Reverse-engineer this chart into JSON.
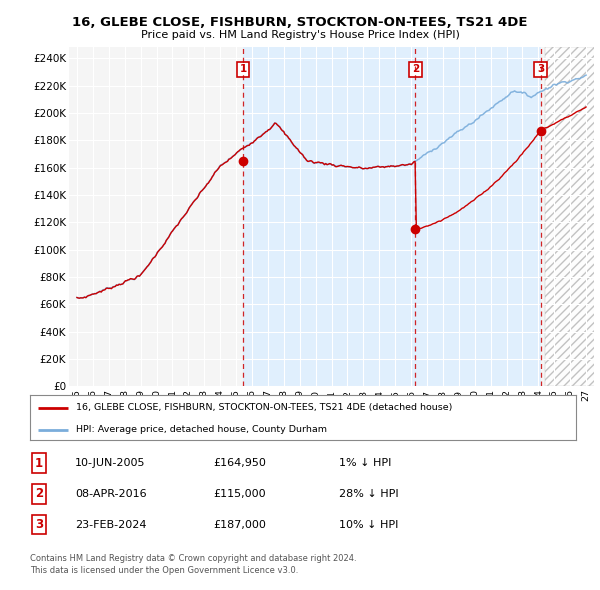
{
  "title": "16, GLEBE CLOSE, FISHBURN, STOCKTON-ON-TEES, TS21 4DE",
  "subtitle": "Price paid vs. HM Land Registry's House Price Index (HPI)",
  "ylabel_ticks": [
    "£0",
    "£20K",
    "£40K",
    "£60K",
    "£80K",
    "£100K",
    "£120K",
    "£140K",
    "£160K",
    "£180K",
    "£200K",
    "£220K",
    "£240K"
  ],
  "ytick_values": [
    0,
    20000,
    40000,
    60000,
    80000,
    100000,
    120000,
    140000,
    160000,
    180000,
    200000,
    220000,
    240000
  ],
  "ylim": [
    0,
    248000
  ],
  "xlim_start": 1994.5,
  "xlim_end": 2027.5,
  "hpi_color": "#7aaddb",
  "price_color": "#cc0000",
  "dashed_line_color": "#cc0000",
  "highlight_bg": "#ddeeff",
  "transactions": [
    {
      "date_num": 2005.44,
      "price": 164950,
      "label": "1"
    },
    {
      "date_num": 2016.27,
      "price": 115000,
      "label": "2"
    },
    {
      "date_num": 2024.14,
      "price": 187000,
      "label": "3"
    }
  ],
  "legend_entries": [
    "16, GLEBE CLOSE, FISHBURN, STOCKTON-ON-TEES, TS21 4DE (detached house)",
    "HPI: Average price, detached house, County Durham"
  ],
  "table_rows": [
    [
      "1",
      "10-JUN-2005",
      "£164,950",
      "1% ↓ HPI"
    ],
    [
      "2",
      "08-APR-2016",
      "£115,000",
      "28% ↓ HPI"
    ],
    [
      "3",
      "23-FEB-2024",
      "£187,000",
      "10% ↓ HPI"
    ]
  ],
  "footnote1": "Contains HM Land Registry data © Crown copyright and database right 2024.",
  "footnote2": "This data is licensed under the Open Government Licence v3.0.",
  "background_color": "#ffffff",
  "plot_bg_color": "#f5f5f5",
  "xtick_labels": [
    "95",
    "96",
    "97",
    "98",
    "99",
    "00",
    "01",
    "02",
    "03",
    "04",
    "05",
    "06",
    "07",
    "08",
    "09",
    "10",
    "11",
    "12",
    "13",
    "14",
    "15",
    "16",
    "17",
    "18",
    "19",
    "20",
    "21",
    "22",
    "23",
    "24",
    "25",
    "26",
    "27"
  ],
  "xtick_years": [
    1995,
    1996,
    1997,
    1998,
    1999,
    2000,
    2001,
    2002,
    2003,
    2004,
    2005,
    2006,
    2007,
    2008,
    2009,
    2010,
    2011,
    2012,
    2013,
    2014,
    2015,
    2016,
    2017,
    2018,
    2019,
    2020,
    2021,
    2022,
    2023,
    2024,
    2025,
    2026,
    2027
  ]
}
